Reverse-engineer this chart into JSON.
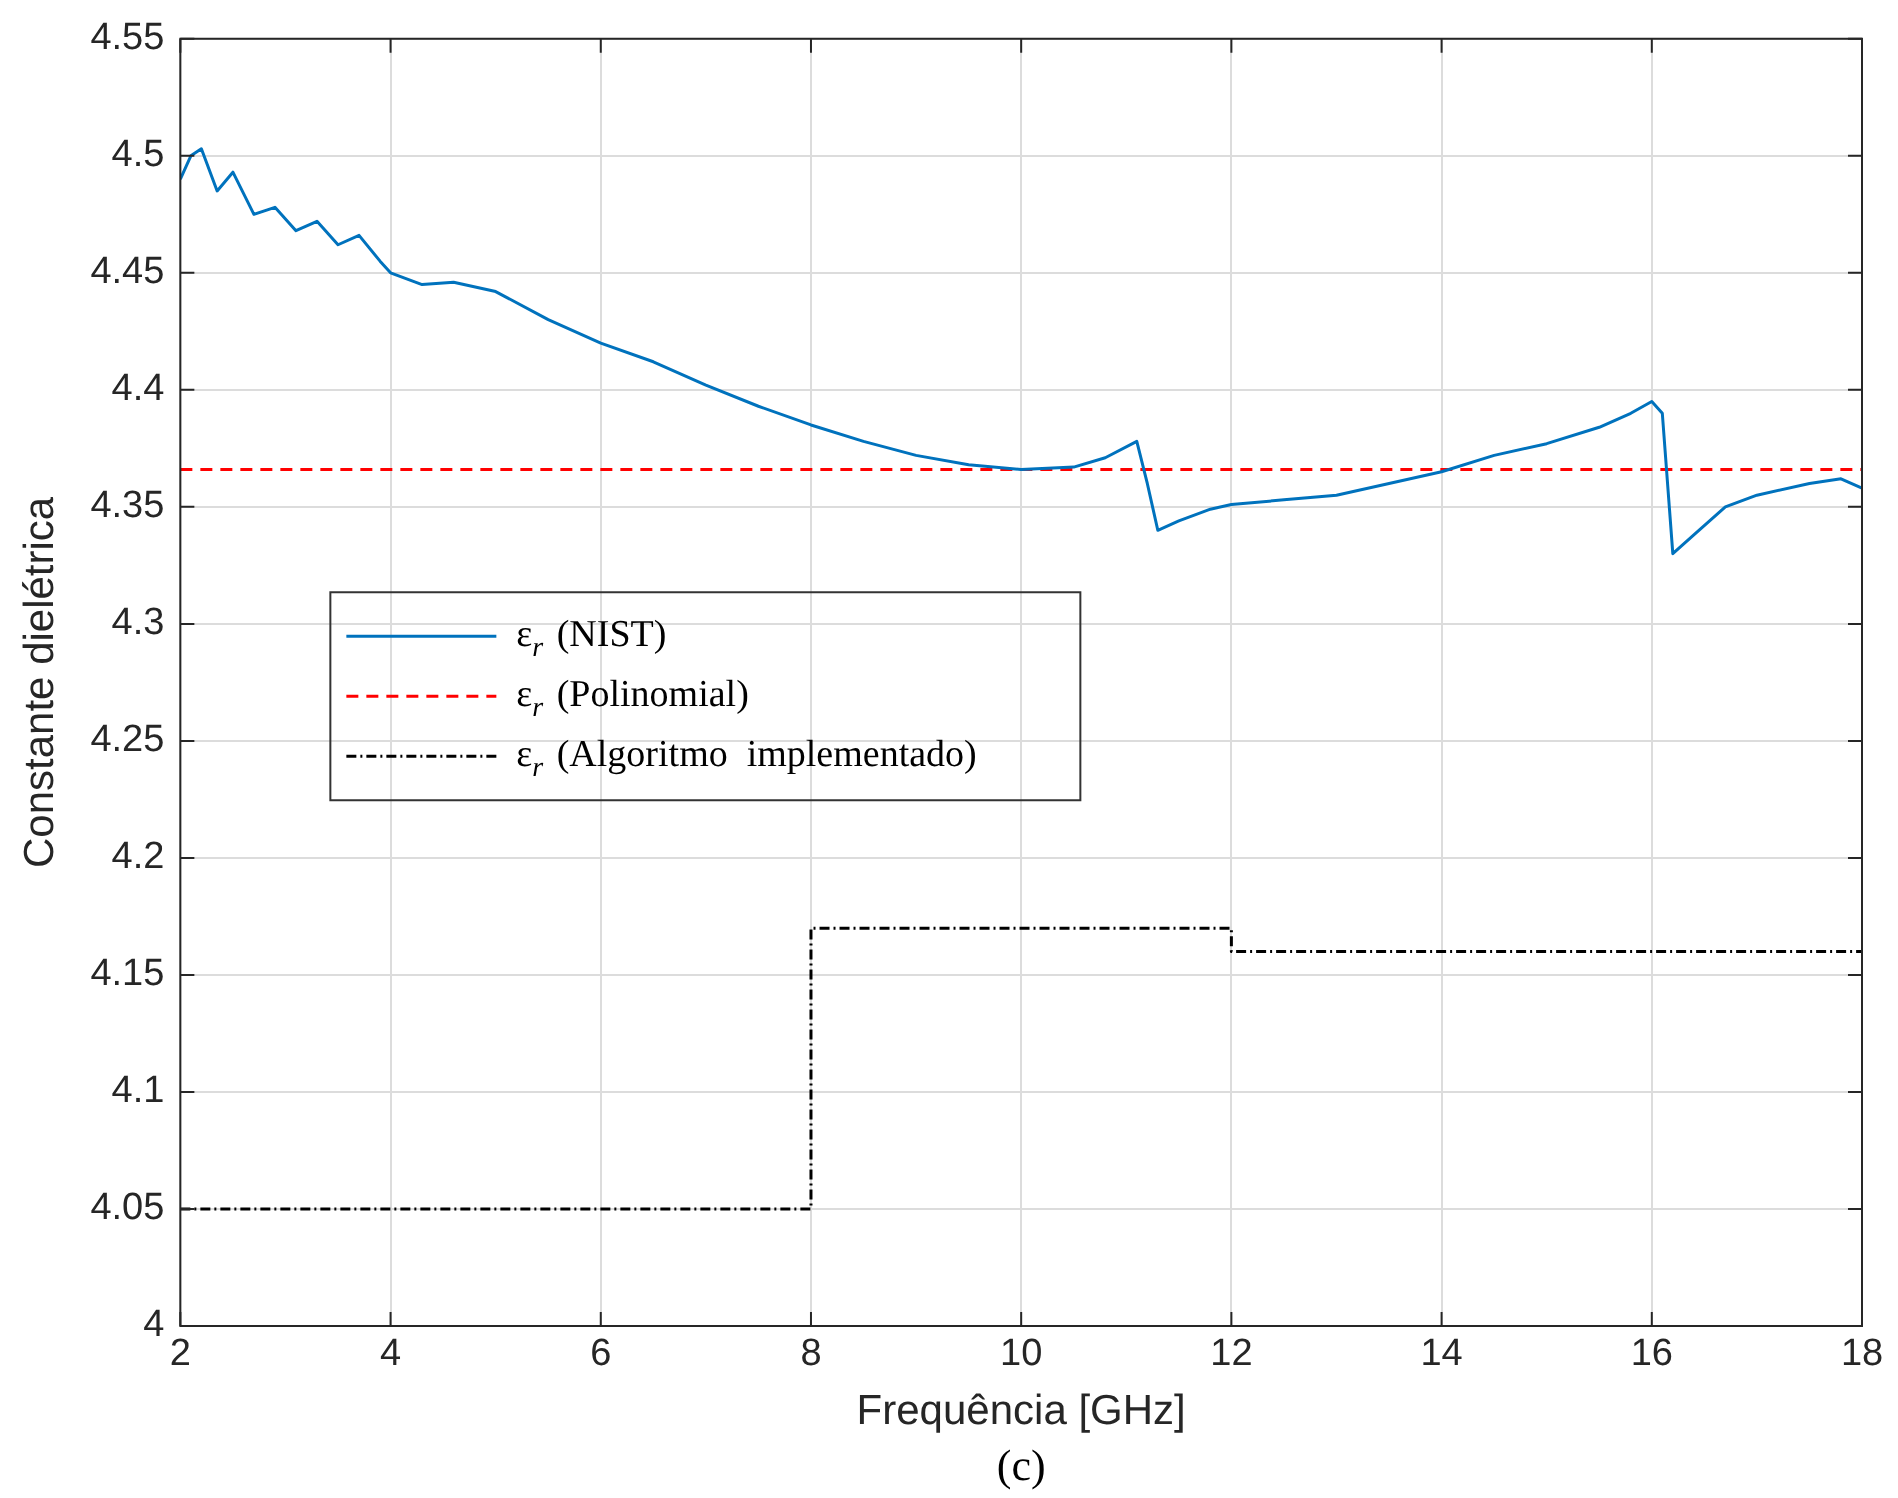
{
  "chart_data": {
    "type": "line",
    "xlabel": "Frequência [GHz]",
    "ylabel": "Constante dielétrica",
    "annotations": [
      "(c)"
    ],
    "xlim": [
      2,
      18
    ],
    "xticks": [
      2,
      4,
      6,
      8,
      10,
      12,
      14,
      16,
      18
    ],
    "ylim": [
      4,
      4.55
    ],
    "yticks": [
      4,
      4.05,
      4.1,
      4.15,
      4.2,
      4.25,
      4.3,
      4.35,
      4.4,
      4.45,
      4.5,
      4.55
    ],
    "grid": true,
    "legend": "center left",
    "marker": "none",
    "series": [
      {
        "name": "ε$_{r}$ (NIST)",
        "color": "#0072bd",
        "line_style": "solid",
        "x": [
          2,
          2.1,
          2.2,
          2.35,
          2.5,
          2.7,
          2.9,
          3.1,
          3.3,
          3.5,
          3.7,
          3.9,
          4,
          4.3,
          4.6,
          5,
          5.5,
          6,
          6.5,
          7,
          7.5,
          8,
          8.5,
          9,
          9.5,
          10,
          10.5,
          10.8,
          11.1,
          11.2,
          11.3,
          11.5,
          11.8,
          12,
          12.5,
          13,
          13.5,
          14,
          14.5,
          15,
          15.5,
          15.8,
          16,
          16.1,
          16.2,
          16.4,
          16.7,
          17,
          17.5,
          17.8,
          18
        ],
        "values": [
          4.49,
          4.5,
          4.503,
          4.485,
          4.493,
          4.475,
          4.478,
          4.468,
          4.472,
          4.462,
          4.466,
          4.455,
          4.45,
          4.445,
          4.446,
          4.442,
          4.43,
          4.42,
          4.412,
          4.402,
          4.393,
          4.385,
          4.378,
          4.372,
          4.368,
          4.366,
          4.367,
          4.371,
          4.378,
          4.36,
          4.34,
          4.344,
          4.349,
          4.351,
          4.353,
          4.355,
          4.36,
          4.365,
          4.372,
          4.377,
          4.384,
          4.39,
          4.395,
          4.39,
          4.33,
          4.338,
          4.35,
          4.355,
          4.36,
          4.362,
          4.358
        ]
      },
      {
        "name": "ε$_{r}$ (Polinomial)",
        "color": "#ff0000",
        "line_style": "dashed",
        "x": [
          2,
          18
        ],
        "values": [
          4.366,
          4.366
        ]
      },
      {
        "name": "ε$_{r}$ (Algoritmo  implementado)",
        "color": "#000000",
        "type": "step",
        "line_style": "dashdot",
        "x": [
          2,
          8,
          12,
          18
        ],
        "values": [
          4.05,
          4.17,
          4.16,
          4.16
        ]
      }
    ]
  }
}
